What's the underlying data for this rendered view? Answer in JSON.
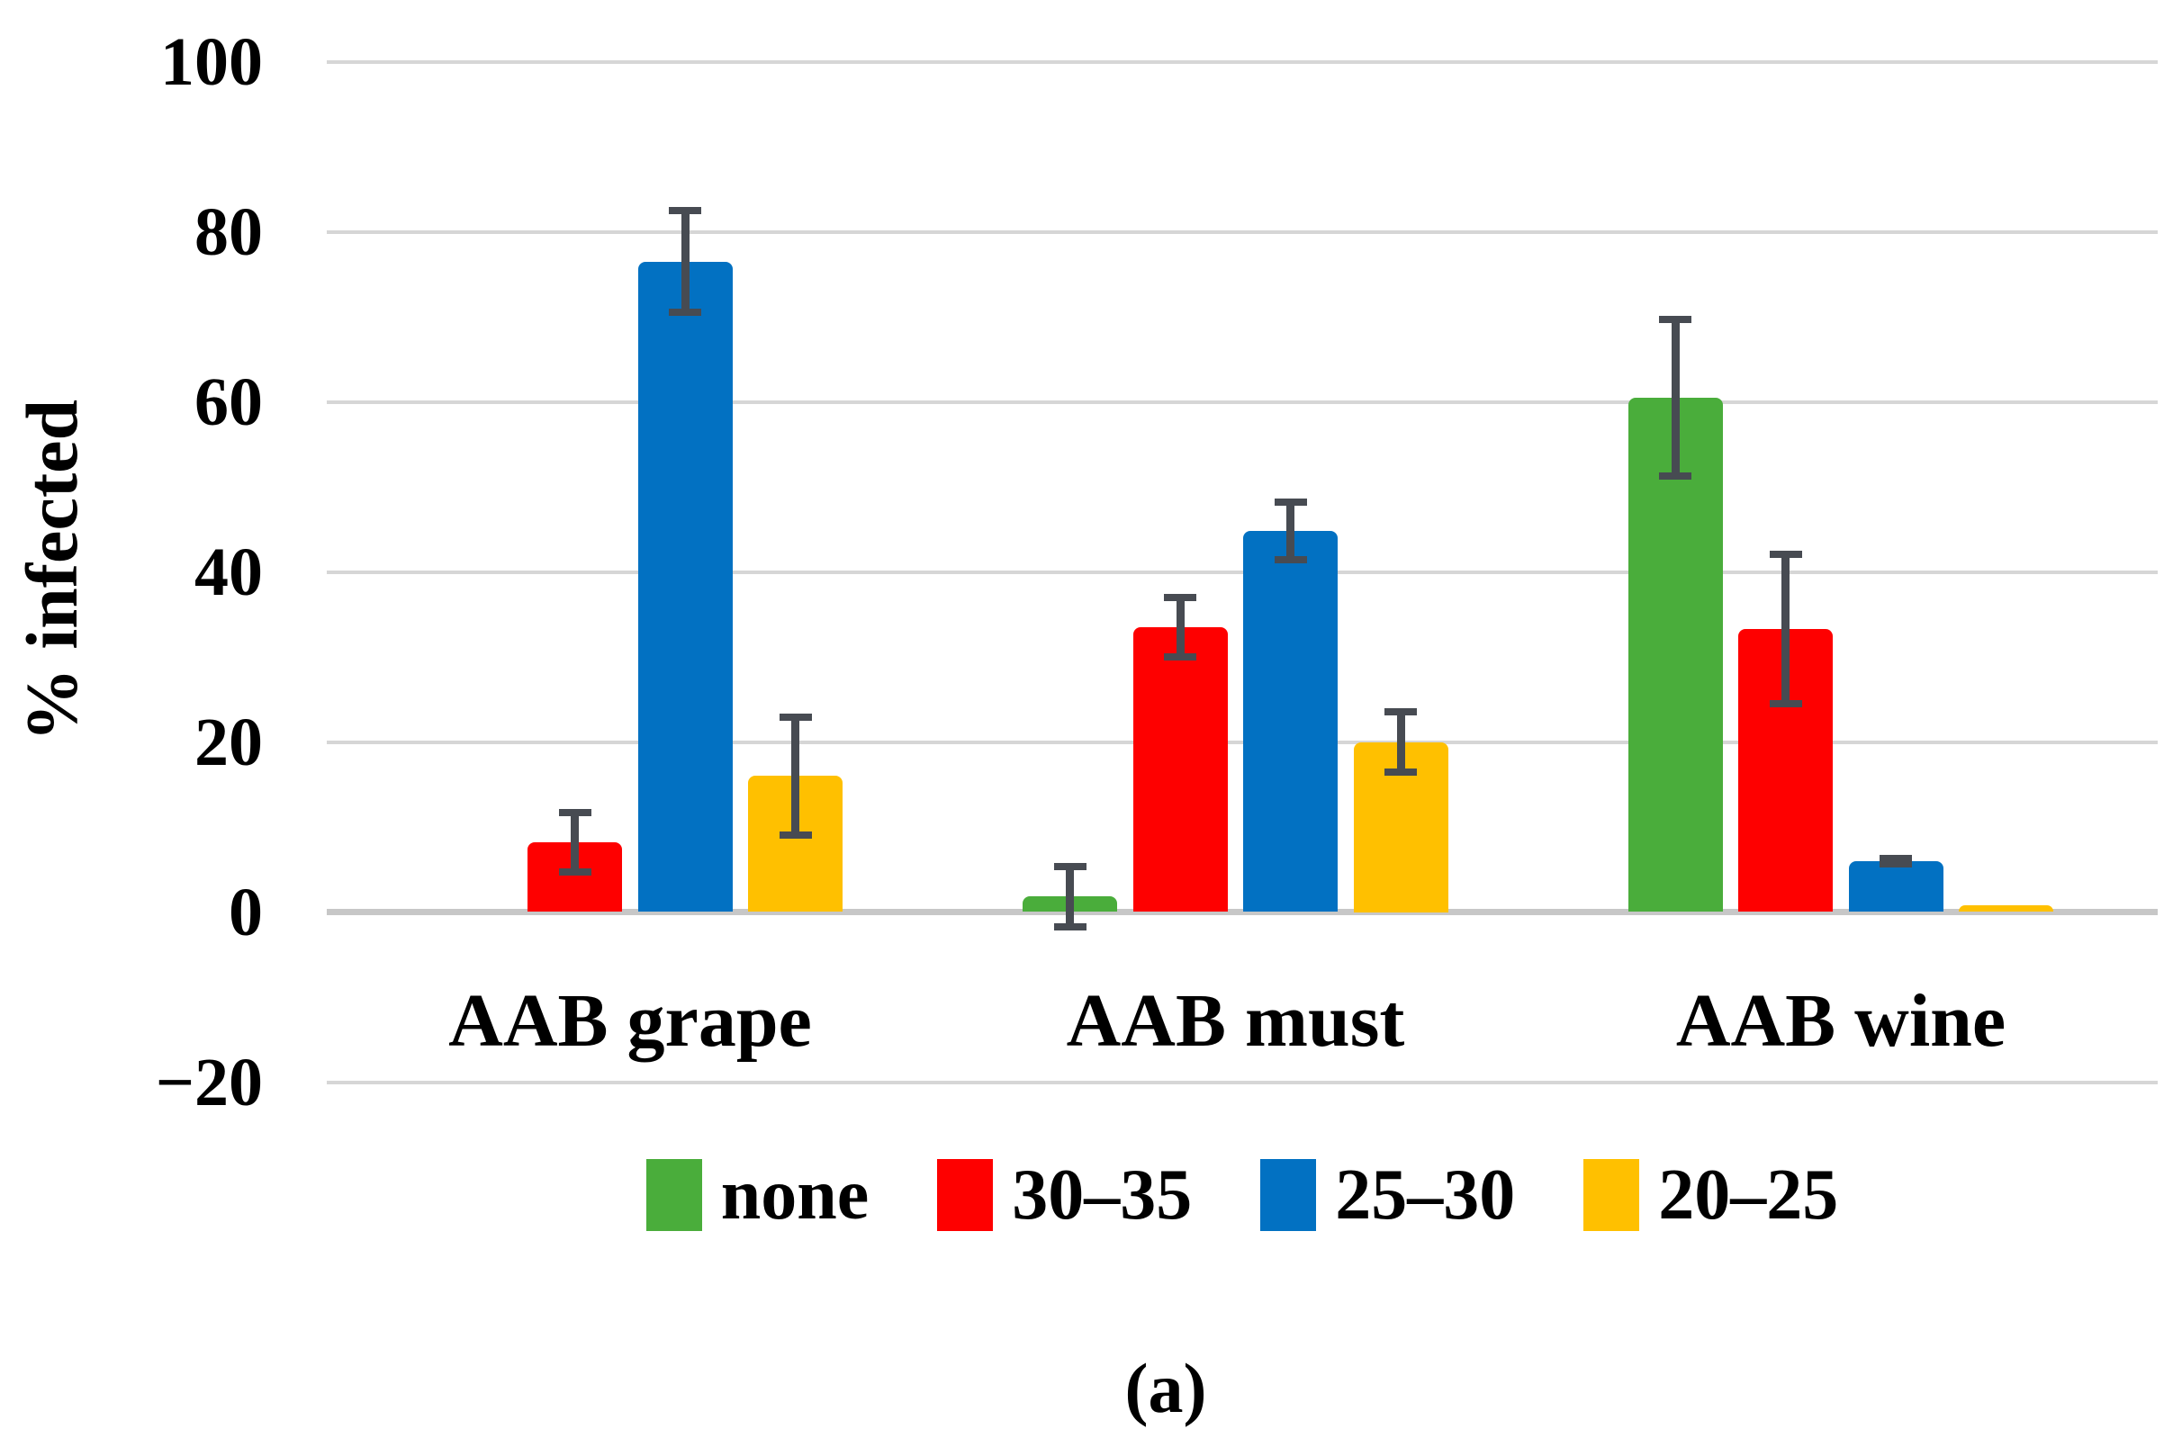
{
  "figure": {
    "caption": "(a)"
  },
  "chart_data": {
    "type": "bar",
    "title": "",
    "xlabel": "",
    "ylabel": "% infected",
    "categories": [
      "AAB grape",
      "AAB must",
      "AAB wine"
    ],
    "series": [
      {
        "name": "none",
        "color": "#4aad3b",
        "values": [
          0,
          1.8,
          60.5
        ],
        "errors": [
          0,
          3.5,
          9.2
        ]
      },
      {
        "name": "30–35",
        "color": "#fe0000",
        "values": [
          8.2,
          33.5,
          33.3
        ],
        "errors": [
          3.5,
          3.5,
          8.8
        ]
      },
      {
        "name": "25–30",
        "color": "#0271c2",
        "values": [
          76.5,
          44.8,
          6.0
        ],
        "errors": [
          6.0,
          3.4,
          0.3
        ]
      },
      {
        "name": "20–25",
        "color": "#ffc000",
        "values": [
          16.0,
          20.0,
          0.8
        ],
        "errors": [
          6.9,
          3.5,
          0
        ]
      }
    ],
    "yticks": [
      100,
      80,
      60,
      40,
      20,
      0,
      -20
    ],
    "ytick_labels": [
      "100",
      "80",
      "60",
      "40",
      "20",
      "0",
      "−20"
    ],
    "ylim": [
      -20,
      100
    ],
    "grid": true,
    "legend_position": "bottom",
    "gridline_color": "#d6d6d6",
    "zero_line_color": "#c7c7c7",
    "error_bar_color": "#474b52"
  }
}
